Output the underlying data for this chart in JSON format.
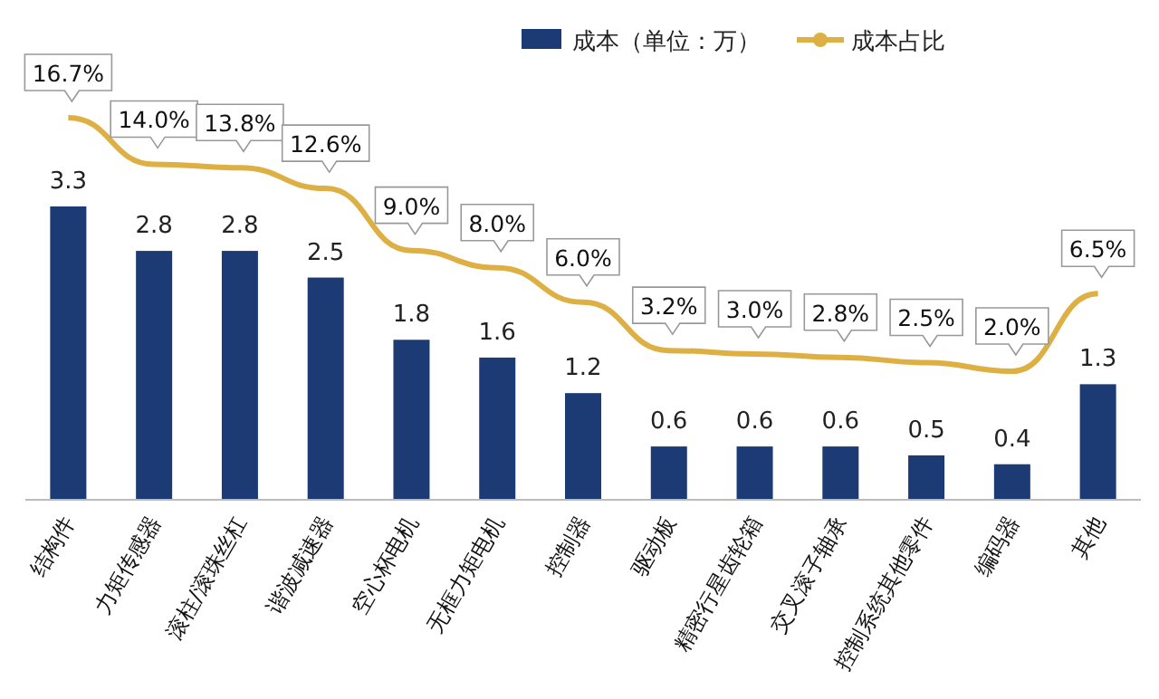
{
  "chart_data": {
    "type": "bar",
    "categories": [
      "结构件",
      "力矩传感器",
      "滚柱/滚珠丝杠",
      "谐波减速器",
      "空心杯电机",
      "无框力矩电机",
      "控制器",
      "驱动板",
      "精密行星齿轮箱",
      "交叉滚子轴承",
      "控制系统其他零件",
      "编码器",
      "其他"
    ],
    "series": [
      {
        "name": "成本（单位：万）",
        "type": "bar",
        "color": "#1c3a73",
        "values": [
          3.3,
          2.8,
          2.8,
          2.5,
          1.8,
          1.6,
          1.2,
          0.6,
          0.6,
          0.6,
          0.5,
          0.4,
          1.3
        ],
        "value_labels": [
          "3.3",
          "2.8",
          "2.8",
          "2.5",
          "1.8",
          "1.6",
          "1.2",
          "0.6",
          "0.6",
          "0.6",
          "0.5",
          "0.4",
          "1.3"
        ]
      },
      {
        "name": "成本占比",
        "type": "line",
        "axis": "y2",
        "color": "#deb044",
        "values": [
          16.7,
          14.0,
          13.8,
          12.6,
          9.0,
          8.0,
          6.0,
          3.2,
          3.0,
          2.8,
          2.5,
          2.0,
          6.5
        ],
        "value_labels": [
          "16.7%",
          "14.0%",
          "13.8%",
          "12.6%",
          "9.0%",
          "8.0%",
          "6.0%",
          "3.2%",
          "3.0%",
          "2.8%",
          "2.5%",
          "2.0%",
          "6.5%"
        ]
      }
    ],
    "legend": "top right",
    "grid": false
  }
}
